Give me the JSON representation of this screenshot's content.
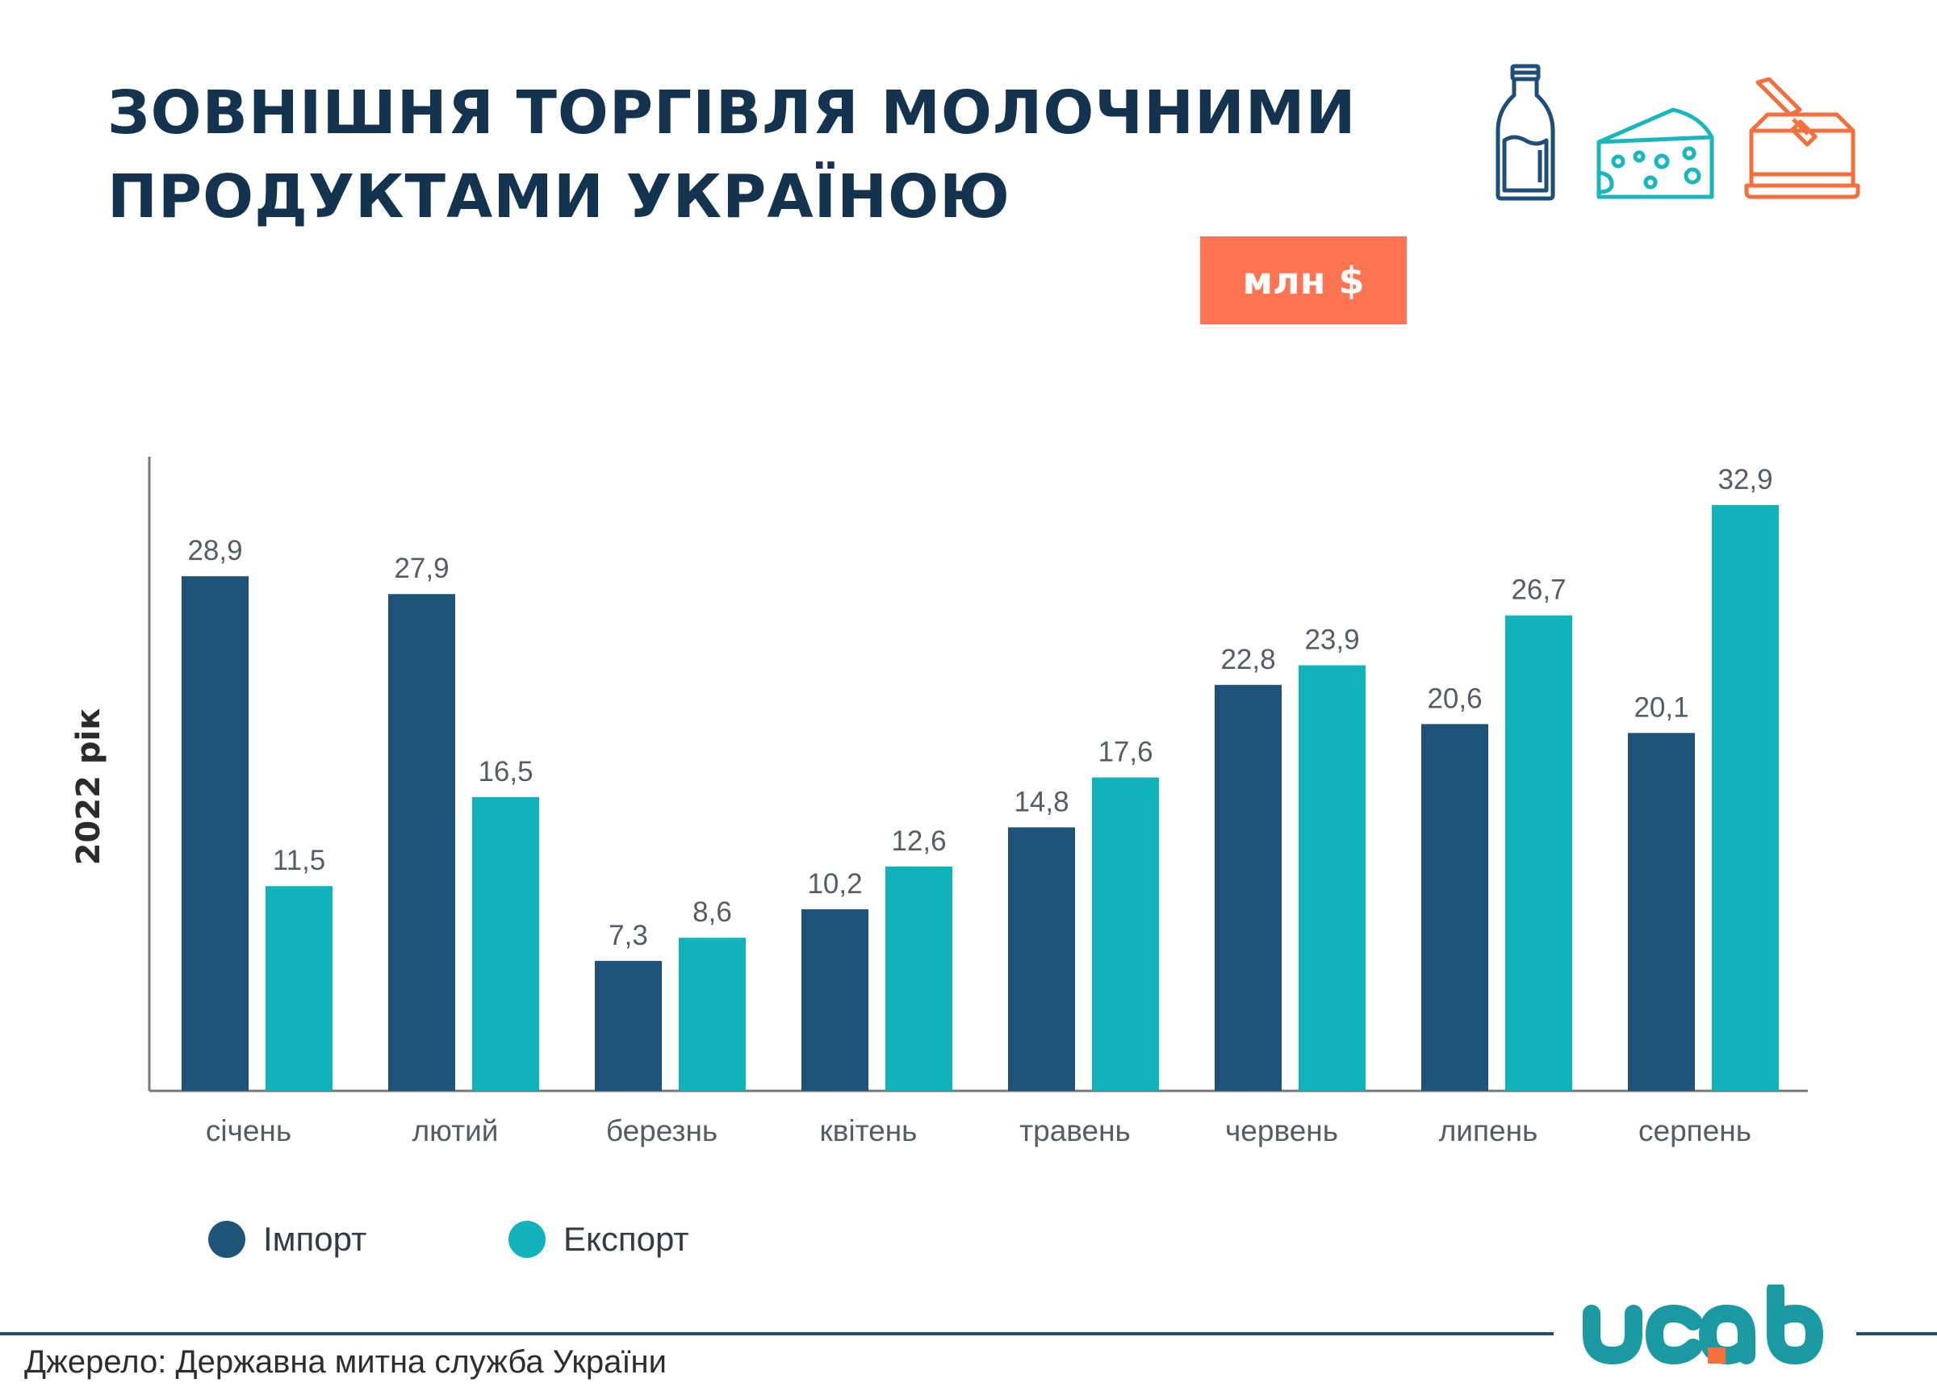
{
  "title": {
    "line1": "ЗОВНІШНЯ ТОРГІВЛЯ МОЛОЧНИМИ",
    "line2": "ПРОДУКТАМИ УКРАЇНОЮ"
  },
  "unit_badge": "млн $",
  "icons": [
    "milk-bottle-icon",
    "cheese-icon",
    "butter-dish-icon"
  ],
  "colors": {
    "import": "#1f5479",
    "export": "#12b2ba",
    "title": "#14334f",
    "badge": "#ff7452",
    "milk_icon": "#1f4e78",
    "cheese_icon": "#1ab5bd",
    "butter_icon": "#f36f3b"
  },
  "legend": {
    "import_label": "Імпорт",
    "export_label": "Експорт"
  },
  "source": "Джерело: Державна митна служба України",
  "logo": "ucab",
  "chart_data": {
    "type": "bar",
    "ylabel": "2022 рік",
    "categories": [
      "січень",
      "лютий",
      "березнь",
      "квітень",
      "травень",
      "червень",
      "липень",
      "серпень"
    ],
    "series": [
      {
        "name": "Імпорт",
        "values": [
          28.9,
          27.9,
          7.3,
          10.2,
          14.8,
          22.8,
          20.6,
          20.1
        ],
        "labels": [
          "28,9",
          "27,9",
          "7,3",
          "10,2",
          "14,8",
          "22,8",
          "20,6",
          "20,1"
        ]
      },
      {
        "name": "Експорт",
        "values": [
          11.5,
          16.5,
          8.6,
          12.6,
          17.6,
          23.9,
          26.7,
          32.9
        ],
        "labels": [
          "11,5",
          "16,5",
          "8,6",
          "12,6",
          "17,6",
          "23,9",
          "26,7",
          "32,9"
        ]
      }
    ],
    "ylim": [
      0,
      35
    ],
    "grid": false,
    "legend_position": "bottom-left"
  }
}
